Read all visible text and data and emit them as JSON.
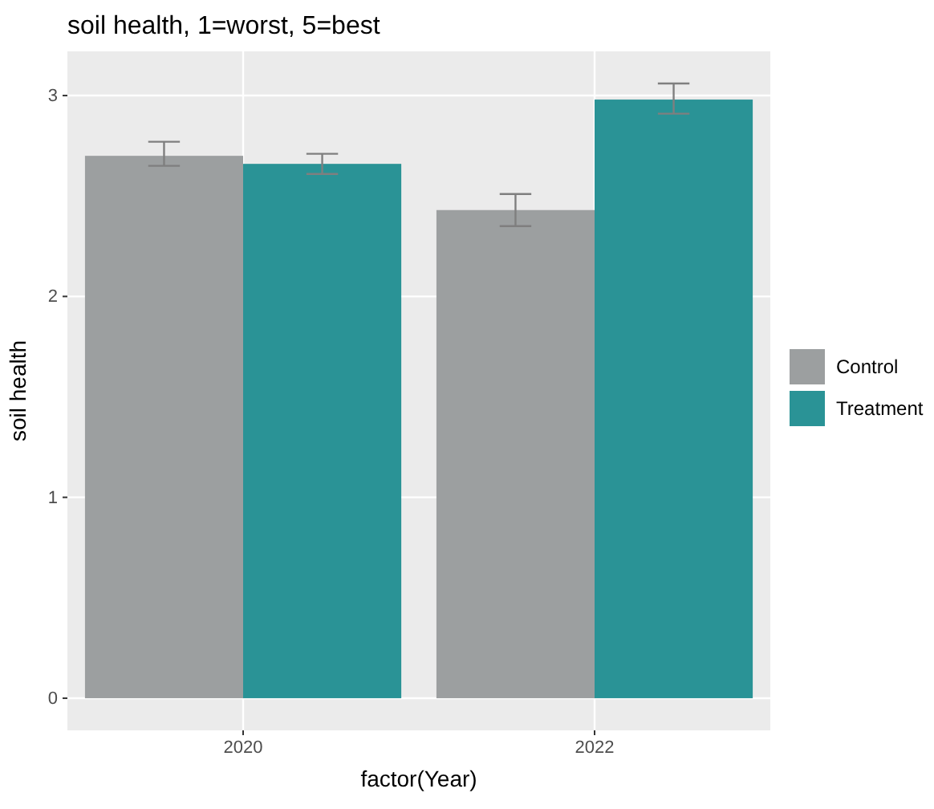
{
  "chart_data": {
    "type": "bar",
    "title": "soil health, 1=worst, 5=best",
    "xlabel": "factor(Year)",
    "ylabel": "soil health",
    "categories": [
      "2020",
      "2022"
    ],
    "series": [
      {
        "name": "Control",
        "color": "#9c9fa0",
        "values": [
          2.7,
          2.43
        ],
        "errors": [
          [
            2.65,
            2.77
          ],
          [
            2.35,
            2.51
          ]
        ]
      },
      {
        "name": "Treatment",
        "color": "#2a9396",
        "values": [
          2.66,
          2.98
        ],
        "errors": [
          [
            2.61,
            2.71
          ],
          [
            2.91,
            3.06
          ]
        ]
      }
    ],
    "ylim": [
      -0.16,
      3.22
    ],
    "yticks": [
      0,
      1,
      2,
      3
    ],
    "grid": true,
    "legend": "right"
  }
}
